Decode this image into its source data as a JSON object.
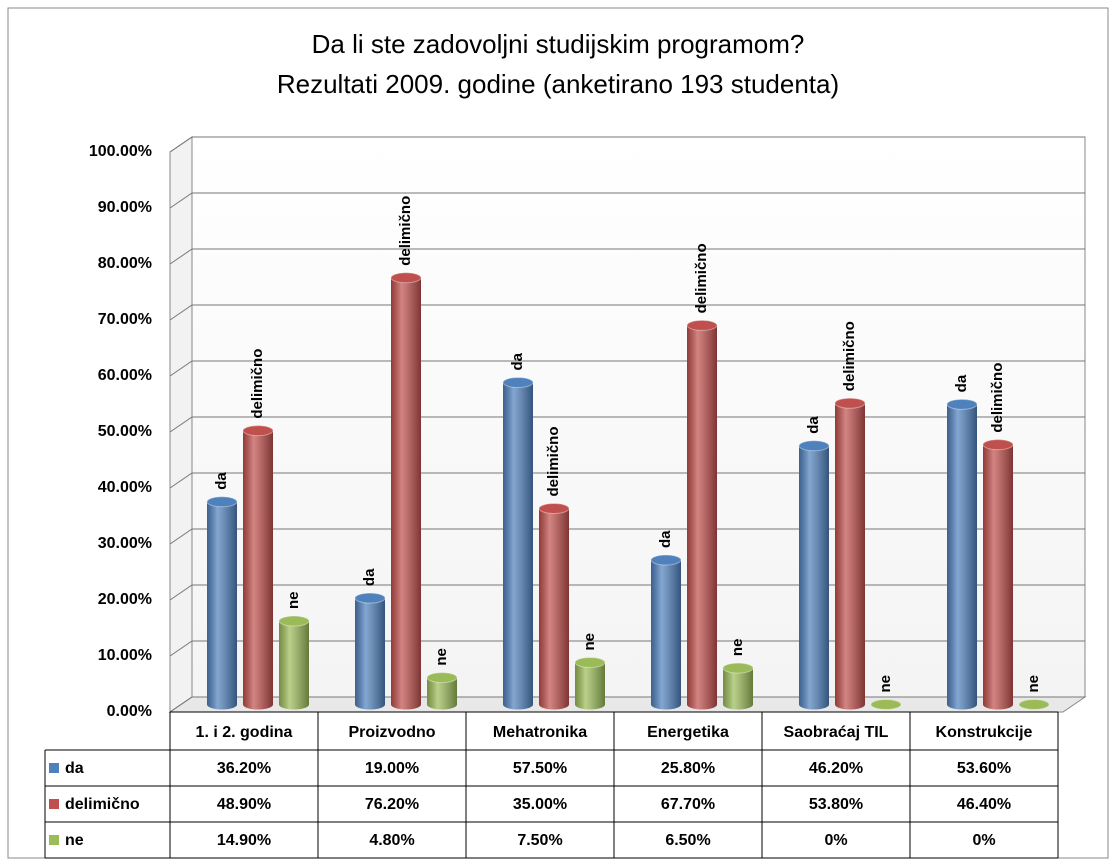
{
  "chart_data": {
    "type": "bar3d",
    "title": "Da li ste zadovoljni studijskim programom?",
    "subtitle": "Rezultati 2009. godine (anketirano  193 studenta)",
    "categories": [
      "1. i 2. godina",
      "Proizvodno",
      "Mehatronika",
      "Energetika",
      "Saobraćaj TIL",
      "Konstrukcije"
    ],
    "series": [
      {
        "name": "da",
        "color": "#4f81bd",
        "values": [
          36.2,
          19.0,
          57.5,
          25.8,
          46.2,
          53.6
        ],
        "value_labels": [
          "36.20%",
          "19.00%",
          "57.50%",
          "25.80%",
          "46.20%",
          "53.60%"
        ]
      },
      {
        "name": "delimično",
        "color": "#c0504d",
        "values": [
          48.9,
          76.2,
          35.0,
          67.7,
          53.8,
          46.4
        ],
        "value_labels": [
          "48.90%",
          "76.20%",
          "35.00%",
          "67.70%",
          "53.80%",
          "46.40%"
        ]
      },
      {
        "name": "ne",
        "color": "#9bbb59",
        "values": [
          14.9,
          4.8,
          7.5,
          6.5,
          0,
          0
        ],
        "value_labels": [
          "14.90%",
          "4.80%",
          "7.50%",
          "6.50%",
          "0%",
          "0%"
        ]
      }
    ],
    "ylim": [
      0,
      100
    ],
    "yticks": [
      {
        "value": 0,
        "label": "0.00%"
      },
      {
        "value": 10,
        "label": "10.00%"
      },
      {
        "value": 20,
        "label": "20.00%"
      },
      {
        "value": 30,
        "label": "30.00%"
      },
      {
        "value": 40,
        "label": "40.00%"
      },
      {
        "value": 50,
        "label": "50.00%"
      },
      {
        "value": 60,
        "label": "60.00%"
      },
      {
        "value": 70,
        "label": "70.00%"
      },
      {
        "value": 80,
        "label": "80.00%"
      },
      {
        "value": 90,
        "label": "90.00%"
      },
      {
        "value": 100,
        "label": "100.00%"
      }
    ],
    "grid": true,
    "data_table": true
  }
}
